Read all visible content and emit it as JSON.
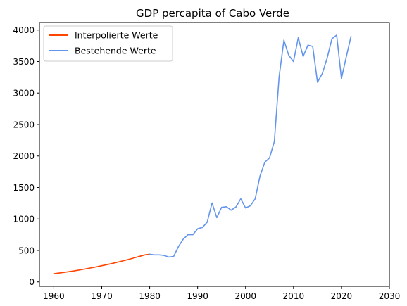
{
  "chart_data": {
    "type": "line",
    "title": "GDP percapita of Cabo Verde",
    "xlabel": "",
    "ylabel": "",
    "xlim": [
      1957,
      2030
    ],
    "ylim": [
      -70,
      4120
    ],
    "x_ticks": [
      1960,
      1970,
      1980,
      1990,
      2000,
      2010,
      2020,
      2030
    ],
    "y_ticks": [
      0,
      500,
      1000,
      1500,
      2000,
      2500,
      3000,
      3500,
      4000
    ],
    "legend_position": "top-left",
    "grid": false,
    "series": [
      {
        "name": "Interpolierte Werte",
        "color": "#ff4500",
        "x": [
          1960,
          1961,
          1962,
          1963,
          1964,
          1965,
          1966,
          1967,
          1968,
          1969,
          1970,
          1971,
          1972,
          1973,
          1974,
          1975,
          1976,
          1977,
          1978,
          1979,
          1980
        ],
        "y": [
          130,
          140,
          150,
          161,
          173,
          185,
          198,
          212,
          226,
          241,
          257,
          273,
          290,
          308,
          327,
          346,
          366,
          387,
          408,
          430,
          440
        ]
      },
      {
        "name": "Bestehende Werte",
        "color": "#6495ed",
        "x": [
          1980,
          1981,
          1982,
          1983,
          1984,
          1985,
          1986,
          1987,
          1988,
          1989,
          1990,
          1991,
          1992,
          1993,
          1994,
          1995,
          1996,
          1997,
          1998,
          1999,
          2000,
          2001,
          2002,
          2003,
          2004,
          2005,
          2006,
          2007,
          2008,
          2009,
          2010,
          2011,
          2012,
          2013,
          2014,
          2015,
          2016,
          2017,
          2018,
          2019,
          2020,
          2021,
          2022
        ],
        "y": [
          440,
          430,
          430,
          420,
          395,
          405,
          560,
          680,
          750,
          750,
          845,
          865,
          950,
          1255,
          1020,
          1185,
          1195,
          1140,
          1190,
          1320,
          1175,
          1210,
          1320,
          1680,
          1900,
          1970,
          2230,
          3260,
          3840,
          3600,
          3500,
          3880,
          3580,
          3760,
          3740,
          3170,
          3310,
          3550,
          3860,
          3920,
          3230,
          3570,
          3900
        ]
      }
    ]
  }
}
